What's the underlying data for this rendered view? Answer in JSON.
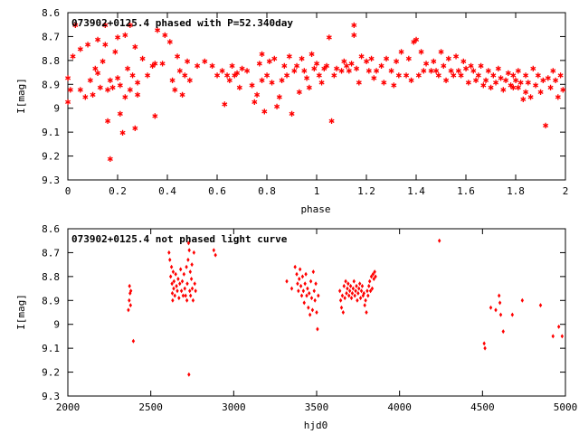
{
  "chart_data": [
    {
      "type": "scatter",
      "title": "073902+0125.4 phased with P=52.340day",
      "xlabel": "phase",
      "ylabel": "I[mag]",
      "xlim": [
        0,
        2
      ],
      "ylim": [
        8.6,
        9.3
      ],
      "y_inverted": true,
      "grid": false,
      "marker": "star",
      "color": "#ff0000",
      "xticks": [
        "0",
        "0.2",
        "0.4",
        "0.6",
        "0.8",
        "1",
        "1.2",
        "1.4",
        "1.6",
        "1.8",
        "2"
      ],
      "yticks": [
        "8.6",
        "8.7",
        "8.8",
        "8.9",
        "9",
        "9.1",
        "9.2",
        "9.3"
      ],
      "points": [
        [
          0.0,
          8.97
        ],
        [
          0.0,
          8.87
        ],
        [
          0.01,
          8.92
        ],
        [
          0.02,
          8.78
        ],
        [
          0.03,
          8.65
        ],
        [
          0.05,
          8.92
        ],
        [
          0.05,
          8.75
        ],
        [
          0.07,
          8.95
        ],
        [
          0.08,
          8.73
        ],
        [
          0.09,
          8.88
        ],
        [
          0.1,
          8.94
        ],
        [
          0.11,
          8.83
        ],
        [
          0.12,
          8.71
        ],
        [
          0.12,
          8.85
        ],
        [
          0.13,
          8.91
        ],
        [
          0.14,
          8.8
        ],
        [
          0.15,
          8.65
        ],
        [
          0.15,
          8.73
        ],
        [
          0.16,
          9.05
        ],
        [
          0.16,
          8.92
        ],
        [
          0.17,
          8.88
        ],
        [
          0.17,
          9.21
        ],
        [
          0.18,
          8.91
        ],
        [
          0.19,
          8.76
        ],
        [
          0.2,
          8.7
        ],
        [
          0.2,
          8.87
        ],
        [
          0.21,
          9.02
        ],
        [
          0.21,
          8.9
        ],
        [
          0.22,
          9.1
        ],
        [
          0.23,
          8.69
        ],
        [
          0.23,
          8.95
        ],
        [
          0.24,
          8.83
        ],
        [
          0.25,
          8.65
        ],
        [
          0.25,
          8.92
        ],
        [
          0.26,
          8.86
        ],
        [
          0.27,
          8.74
        ],
        [
          0.27,
          9.08
        ],
        [
          0.28,
          8.89
        ],
        [
          0.28,
          8.94
        ],
        [
          0.3,
          8.79
        ],
        [
          0.32,
          8.86
        ],
        [
          0.34,
          8.82
        ],
        [
          0.35,
          9.03
        ],
        [
          0.35,
          8.81
        ],
        [
          0.36,
          8.67
        ],
        [
          0.38,
          8.81
        ],
        [
          0.39,
          8.69
        ],
        [
          0.41,
          8.72
        ],
        [
          0.42,
          8.88
        ],
        [
          0.43,
          8.92
        ],
        [
          0.44,
          8.78
        ],
        [
          0.45,
          8.84
        ],
        [
          0.46,
          8.94
        ],
        [
          0.47,
          8.86
        ],
        [
          0.48,
          8.8
        ],
        [
          0.49,
          8.88
        ],
        [
          0.52,
          8.82
        ],
        [
          0.55,
          8.8
        ],
        [
          0.58,
          8.82
        ],
        [
          0.6,
          8.86
        ],
        [
          0.62,
          8.84
        ],
        [
          0.63,
          8.98
        ],
        [
          0.64,
          8.86
        ],
        [
          0.65,
          8.88
        ],
        [
          0.66,
          8.82
        ],
        [
          0.67,
          8.86
        ],
        [
          0.68,
          8.85
        ],
        [
          0.69,
          8.91
        ],
        [
          0.7,
          8.83
        ],
        [
          0.72,
          8.84
        ],
        [
          0.74,
          8.9
        ],
        [
          0.75,
          8.97
        ],
        [
          0.76,
          8.94
        ],
        [
          0.77,
          8.81
        ],
        [
          0.78,
          8.88
        ],
        [
          0.78,
          8.77
        ],
        [
          0.79,
          9.01
        ],
        [
          0.8,
          8.86
        ],
        [
          0.81,
          8.8
        ],
        [
          0.82,
          8.89
        ],
        [
          0.83,
          8.79
        ],
        [
          0.84,
          8.99
        ],
        [
          0.85,
          8.95
        ],
        [
          0.86,
          8.88
        ],
        [
          0.87,
          8.82
        ],
        [
          0.88,
          8.86
        ],
        [
          0.89,
          8.78
        ],
        [
          0.9,
          9.02
        ],
        [
          0.91,
          8.84
        ],
        [
          0.92,
          8.82
        ],
        [
          0.93,
          8.93
        ],
        [
          0.94,
          8.79
        ],
        [
          0.95,
          8.84
        ],
        [
          0.96,
          8.87
        ],
        [
          0.97,
          8.91
        ],
        [
          0.98,
          8.77
        ],
        [
          0.99,
          8.83
        ],
        [
          1.0,
          8.81
        ],
        [
          1.01,
          8.86
        ],
        [
          1.02,
          8.89
        ],
        [
          1.03,
          8.83
        ],
        [
          1.04,
          8.82
        ],
        [
          1.05,
          8.7
        ],
        [
          1.06,
          9.05
        ],
        [
          1.07,
          8.86
        ],
        [
          1.08,
          8.83
        ],
        [
          1.1,
          8.84
        ],
        [
          1.11,
          8.8
        ],
        [
          1.12,
          8.82
        ],
        [
          1.13,
          8.84
        ],
        [
          1.14,
          8.81
        ],
        [
          1.15,
          8.65
        ],
        [
          1.15,
          8.69
        ],
        [
          1.16,
          8.83
        ],
        [
          1.17,
          8.89
        ],
        [
          1.18,
          8.78
        ],
        [
          1.2,
          8.8
        ],
        [
          1.21,
          8.84
        ],
        [
          1.22,
          8.79
        ],
        [
          1.23,
          8.87
        ],
        [
          1.24,
          8.84
        ],
        [
          1.26,
          8.82
        ],
        [
          1.27,
          8.89
        ],
        [
          1.28,
          8.79
        ],
        [
          1.3,
          8.84
        ],
        [
          1.31,
          8.9
        ],
        [
          1.32,
          8.8
        ],
        [
          1.33,
          8.86
        ],
        [
          1.34,
          8.76
        ],
        [
          1.36,
          8.86
        ],
        [
          1.37,
          8.79
        ],
        [
          1.38,
          8.88
        ],
        [
          1.39,
          8.72
        ],
        [
          1.4,
          8.71
        ],
        [
          1.41,
          8.86
        ],
        [
          1.42,
          8.76
        ],
        [
          1.43,
          8.84
        ],
        [
          1.44,
          8.81
        ],
        [
          1.46,
          8.84
        ],
        [
          1.47,
          8.8
        ],
        [
          1.48,
          8.84
        ],
        [
          1.49,
          8.86
        ],
        [
          1.5,
          8.76
        ],
        [
          1.51,
          8.82
        ],
        [
          1.52,
          8.88
        ],
        [
          1.53,
          8.79
        ],
        [
          1.54,
          8.84
        ],
        [
          1.55,
          8.86
        ],
        [
          1.56,
          8.78
        ],
        [
          1.57,
          8.84
        ],
        [
          1.58,
          8.86
        ],
        [
          1.59,
          8.8
        ],
        [
          1.6,
          8.83
        ],
        [
          1.61,
          8.89
        ],
        [
          1.62,
          8.82
        ],
        [
          1.63,
          8.84
        ],
        [
          1.64,
          8.88
        ],
        [
          1.65,
          8.86
        ],
        [
          1.66,
          8.82
        ],
        [
          1.67,
          8.9
        ],
        [
          1.68,
          8.88
        ],
        [
          1.69,
          8.84
        ],
        [
          1.7,
          8.91
        ],
        [
          1.71,
          8.86
        ],
        [
          1.72,
          8.89
        ],
        [
          1.73,
          8.83
        ],
        [
          1.74,
          8.87
        ],
        [
          1.75,
          8.92
        ],
        [
          1.76,
          8.88
        ],
        [
          1.77,
          8.85
        ],
        [
          1.78,
          8.9
        ],
        [
          1.79,
          8.86
        ],
        [
          1.79,
          8.91
        ],
        [
          1.8,
          8.88
        ],
        [
          1.81,
          8.84
        ],
        [
          1.81,
          8.91
        ],
        [
          1.82,
          8.89
        ],
        [
          1.83,
          8.96
        ],
        [
          1.84,
          8.86
        ],
        [
          1.84,
          8.93
        ],
        [
          1.85,
          8.89
        ],
        [
          1.86,
          8.95
        ],
        [
          1.87,
          8.83
        ],
        [
          1.88,
          8.9
        ],
        [
          1.89,
          8.86
        ],
        [
          1.9,
          8.93
        ],
        [
          1.91,
          8.88
        ],
        [
          1.92,
          9.07
        ],
        [
          1.93,
          8.87
        ],
        [
          1.94,
          8.91
        ],
        [
          1.95,
          8.84
        ],
        [
          1.96,
          8.88
        ],
        [
          1.97,
          8.95
        ],
        [
          1.98,
          8.86
        ],
        [
          1.99,
          8.92
        ]
      ]
    },
    {
      "type": "scatter",
      "title": "073902+0125.4 not phased light curve",
      "xlabel": "hjd0",
      "ylabel": "I[mag]",
      "xlim": [
        2000,
        5000
      ],
      "ylim": [
        8.6,
        9.3
      ],
      "y_inverted": true,
      "grid": false,
      "marker": "diamond",
      "color": "#ff0000",
      "xticks": [
        "2000",
        "2500",
        "3000",
        "3500",
        "4000",
        "4500",
        "5000"
      ],
      "yticks": [
        "8.6",
        "8.7",
        "8.8",
        "8.9",
        "9",
        "9.1",
        "9.2",
        "9.3"
      ],
      "points": [
        [
          2365,
          8.94
        ],
        [
          2370,
          8.9
        ],
        [
          2372,
          8.84
        ],
        [
          2375,
          8.87
        ],
        [
          2378,
          8.92
        ],
        [
          2380,
          8.86
        ],
        [
          2395,
          9.07
        ],
        [
          2610,
          8.7
        ],
        [
          2615,
          8.73
        ],
        [
          2620,
          8.8
        ],
        [
          2625,
          8.76
        ],
        [
          2628,
          8.83
        ],
        [
          2630,
          8.87
        ],
        [
          2632,
          8.9
        ],
        [
          2635,
          8.78
        ],
        [
          2638,
          8.85
        ],
        [
          2640,
          8.82
        ],
        [
          2645,
          8.88
        ],
        [
          2650,
          8.79
        ],
        [
          2655,
          8.84
        ],
        [
          2660,
          8.86
        ],
        [
          2665,
          8.81
        ],
        [
          2670,
          8.89
        ],
        [
          2675,
          8.83
        ],
        [
          2680,
          8.77
        ],
        [
          2685,
          8.86
        ],
        [
          2690,
          8.82
        ],
        [
          2695,
          8.88
        ],
        [
          2700,
          8.79
        ],
        [
          2705,
          8.85
        ],
        [
          2710,
          8.88
        ],
        [
          2715,
          8.76
        ],
        [
          2718,
          8.9
        ],
        [
          2720,
          8.83
        ],
        [
          2725,
          8.73
        ],
        [
          2728,
          8.66
        ],
        [
          2730,
          9.21
        ],
        [
          2732,
          8.69
        ],
        [
          2735,
          8.86
        ],
        [
          2738,
          8.78
        ],
        [
          2740,
          8.88
        ],
        [
          2745,
          8.81
        ],
        [
          2748,
          8.75
        ],
        [
          2750,
          8.85
        ],
        [
          2755,
          8.9
        ],
        [
          2760,
          8.7
        ],
        [
          2765,
          8.83
        ],
        [
          2770,
          8.86
        ],
        [
          2880,
          8.69
        ],
        [
          2890,
          8.71
        ],
        [
          3320,
          8.82
        ],
        [
          3350,
          8.85
        ],
        [
          3370,
          8.76
        ],
        [
          3380,
          8.79
        ],
        [
          3385,
          8.83
        ],
        [
          3390,
          8.86
        ],
        [
          3395,
          8.81
        ],
        [
          3400,
          8.77
        ],
        [
          3405,
          8.84
        ],
        [
          3410,
          8.88
        ],
        [
          3415,
          8.8
        ],
        [
          3420,
          8.86
        ],
        [
          3425,
          8.91
        ],
        [
          3430,
          8.83
        ],
        [
          3435,
          8.79
        ],
        [
          3440,
          8.88
        ],
        [
          3445,
          8.85
        ],
        [
          3450,
          8.93
        ],
        [
          3455,
          8.87
        ],
        [
          3460,
          8.96
        ],
        [
          3465,
          8.82
        ],
        [
          3470,
          8.89
        ],
        [
          3475,
          8.94
        ],
        [
          3480,
          8.78
        ],
        [
          3485,
          8.86
        ],
        [
          3490,
          8.9
        ],
        [
          3495,
          8.83
        ],
        [
          3500,
          8.95
        ],
        [
          3505,
          9.02
        ],
        [
          3510,
          8.88
        ],
        [
          3640,
          8.86
        ],
        [
          3645,
          8.9
        ],
        [
          3650,
          8.93
        ],
        [
          3655,
          8.88
        ],
        [
          3660,
          8.95
        ],
        [
          3665,
          8.84
        ],
        [
          3670,
          8.89
        ],
        [
          3675,
          8.82
        ],
        [
          3680,
          8.87
        ],
        [
          3685,
          8.85
        ],
        [
          3690,
          8.83
        ],
        [
          3695,
          8.88
        ],
        [
          3700,
          8.86
        ],
        [
          3705,
          8.84
        ],
        [
          3710,
          8.89
        ],
        [
          3715,
          8.87
        ],
        [
          3720,
          8.85
        ],
        [
          3725,
          8.82
        ],
        [
          3730,
          8.88
        ],
        [
          3735,
          8.86
        ],
        [
          3740,
          8.84
        ],
        [
          3745,
          8.9
        ],
        [
          3750,
          8.87
        ],
        [
          3755,
          8.85
        ],
        [
          3760,
          8.83
        ],
        [
          3765,
          8.89
        ],
        [
          3770,
          8.86
        ],
        [
          3775,
          8.84
        ],
        [
          3780,
          8.88
        ],
        [
          3785,
          8.87
        ],
        [
          3790,
          8.92
        ],
        [
          3795,
          8.9
        ],
        [
          3800,
          8.95
        ],
        [
          3805,
          8.86
        ],
        [
          3810,
          8.88
        ],
        [
          3815,
          8.84
        ],
        [
          3820,
          8.82
        ],
        [
          3825,
          8.86
        ],
        [
          3830,
          8.8
        ],
        [
          3835,
          8.85
        ],
        [
          3840,
          8.79
        ],
        [
          3845,
          8.81
        ],
        [
          3850,
          8.78
        ],
        [
          3855,
          8.8
        ],
        [
          4240,
          8.65
        ],
        [
          4510,
          9.08
        ],
        [
          4515,
          9.1
        ],
        [
          4550,
          8.93
        ],
        [
          4580,
          8.94
        ],
        [
          4600,
          8.88
        ],
        [
          4605,
          8.91
        ],
        [
          4610,
          8.96
        ],
        [
          4625,
          9.03
        ],
        [
          4680,
          8.96
        ],
        [
          4740,
          8.9
        ],
        [
          4850,
          8.92
        ],
        [
          4925,
          9.05
        ],
        [
          4960,
          9.01
        ],
        [
          4980,
          9.05
        ]
      ]
    }
  ]
}
